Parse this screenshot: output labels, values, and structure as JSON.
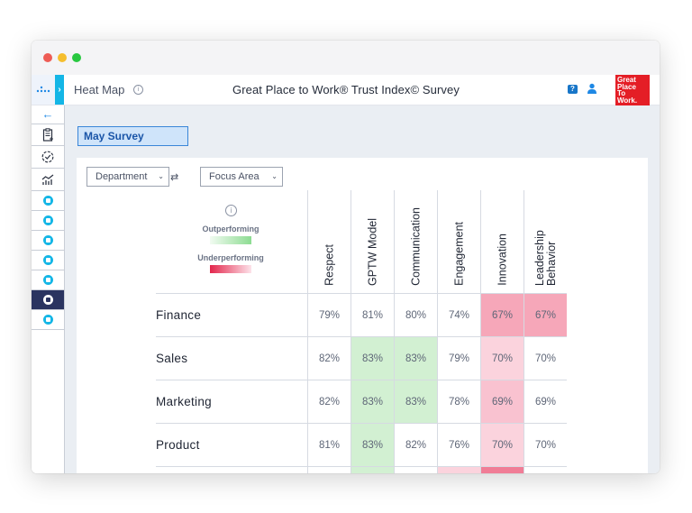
{
  "app": {
    "page_title": "Heat Map",
    "survey_title": "Great Place to Work® Trust Index© Survey",
    "logo_text": [
      "Great",
      "Place",
      "To",
      "Work."
    ]
  },
  "sidebar": {
    "back_icon": "arrow-left-icon",
    "items": [
      {
        "icon": "clipboard-icon"
      },
      {
        "icon": "checklist-icon"
      },
      {
        "icon": "chart-icon"
      },
      {
        "icon": "report-icon"
      },
      {
        "icon": "layers-icon"
      },
      {
        "icon": "list-icon"
      },
      {
        "icon": "people-icon"
      },
      {
        "icon": "image-icon"
      },
      {
        "icon": "heatmap-icon",
        "active": true
      },
      {
        "icon": "profile-icon"
      }
    ]
  },
  "survey_selector": {
    "label": "May Survey"
  },
  "filters": {
    "department": "Department",
    "focus_area": "Focus Area"
  },
  "legend": {
    "outperforming": "Outperforming",
    "underperforming": "Underperforming"
  },
  "heatmap": {
    "columns": [
      "Respect",
      "GPTW Model",
      "Communication",
      "Engagement",
      "Innovation",
      "Leadership Behavior"
    ],
    "rows": [
      {
        "name": "Finance",
        "values": [
          "79%",
          "81%",
          "80%",
          "74%",
          "67%",
          "67%"
        ],
        "colors": [
          "#ffffff",
          "#ffffff",
          "#ffffff",
          "#ffffff",
          "#f6a7b9",
          "#f6a7b9"
        ]
      },
      {
        "name": "Sales",
        "values": [
          "82%",
          "83%",
          "83%",
          "79%",
          "70%",
          "70%"
        ],
        "colors": [
          "#ffffff",
          "#d2f0d2",
          "#d2f0d2",
          "#ffffff",
          "#fbd3dd",
          "#ffffff"
        ]
      },
      {
        "name": "Marketing",
        "values": [
          "82%",
          "83%",
          "83%",
          "78%",
          "69%",
          "69%"
        ],
        "colors": [
          "#ffffff",
          "#d2f0d2",
          "#d2f0d2",
          "#ffffff",
          "#f9c2d0",
          "#ffffff"
        ]
      },
      {
        "name": "Product",
        "values": [
          "81%",
          "83%",
          "82%",
          "76%",
          "70%",
          "70%"
        ],
        "colors": [
          "#ffffff",
          "#d2f0d2",
          "#ffffff",
          "#ffffff",
          "#fbd3dd",
          "#ffffff"
        ]
      }
    ],
    "partial_row_colors": [
      "#ffffff",
      "#d2f0d2",
      "#ffffff",
      "#fbd3dd",
      "#f07d96",
      "#ffffff"
    ]
  }
}
